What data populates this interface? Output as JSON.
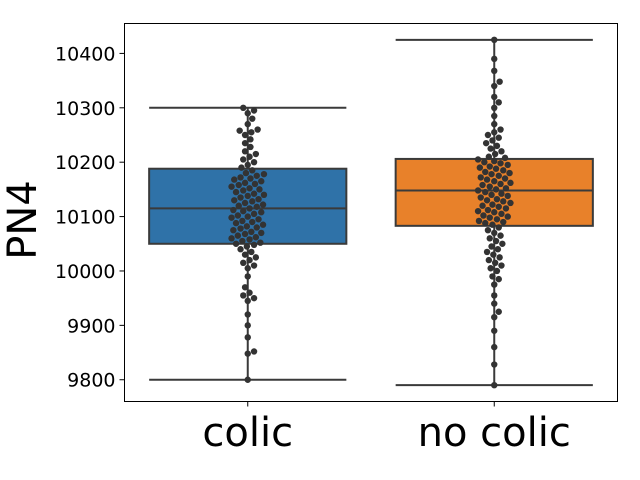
{
  "chart_data": {
    "type": "box",
    "ylabel": "PN4",
    "categories": [
      "colic",
      "no colic"
    ],
    "ylim": [
      9760,
      10455
    ],
    "yticks": [
      9800,
      9900,
      10000,
      10100,
      10200,
      10300,
      10400
    ],
    "grid": false,
    "colors": {
      "box": [
        "#2f72a8",
        "#e8812a"
      ],
      "line": "#3a3a3a",
      "point": "#333333"
    },
    "boxes": [
      {
        "name": "colic",
        "min": 9800,
        "q1": 10050,
        "median": 10115,
        "q3": 10188,
        "max": 10300
      },
      {
        "name": "no colic",
        "min": 9790,
        "q1": 10083,
        "median": 10148,
        "q3": 10206,
        "max": 10425
      }
    ],
    "swarm": [
      {
        "name": "colic",
        "values": [
          9800,
          9848,
          9852,
          9878,
          9900,
          9920,
          9945,
          9950,
          9955,
          9960,
          9970,
          9990,
          10005,
          10010,
          10015,
          10020,
          10025,
          10030,
          10035,
          10040,
          10045,
          10048,
          10050,
          10052,
          10055,
          10058,
          10060,
          10062,
          10065,
          10068,
          10070,
          10072,
          10075,
          10078,
          10080,
          10082,
          10085,
          10088,
          10090,
          10092,
          10095,
          10098,
          10100,
          10102,
          10105,
          10108,
          10110,
          10112,
          10115,
          10118,
          10120,
          10122,
          10125,
          10128,
          10130,
          10132,
          10135,
          10138,
          10140,
          10142,
          10145,
          10148,
          10150,
          10152,
          10155,
          10158,
          10160,
          10162,
          10165,
          10168,
          10170,
          10172,
          10175,
          10178,
          10180,
          10185,
          10190,
          10195,
          10200,
          10205,
          10210,
          10215,
          10220,
          10228,
          10235,
          10242,
          10250,
          10255,
          10258,
          10260,
          10270,
          10280,
          10290,
          10295,
          10300
        ]
      },
      {
        "name": "no colic",
        "values": [
          9790,
          9828,
          9860,
          9890,
          9915,
          9925,
          9940,
          9955,
          9975,
          9985,
          9990,
          10000,
          10005,
          10010,
          10015,
          10020,
          10025,
          10030,
          10035,
          10040,
          10045,
          10050,
          10055,
          10060,
          10065,
          10070,
          10075,
          10080,
          10085,
          10088,
          10090,
          10092,
          10095,
          10098,
          10100,
          10102,
          10105,
          10108,
          10110,
          10112,
          10115,
          10118,
          10120,
          10122,
          10125,
          10128,
          10130,
          10132,
          10135,
          10138,
          10140,
          10142,
          10145,
          10148,
          10150,
          10152,
          10155,
          10158,
          10160,
          10162,
          10165,
          10168,
          10170,
          10172,
          10175,
          10178,
          10180,
          10182,
          10185,
          10188,
          10190,
          10192,
          10195,
          10198,
          10200,
          10202,
          10205,
          10208,
          10210,
          10215,
          10220,
          10225,
          10230,
          10235,
          10240,
          10245,
          10250,
          10255,
          10260,
          10270,
          10285,
          10300,
          10310,
          10320,
          10340,
          10348,
          10368,
          10390,
          10425
        ]
      }
    ]
  }
}
